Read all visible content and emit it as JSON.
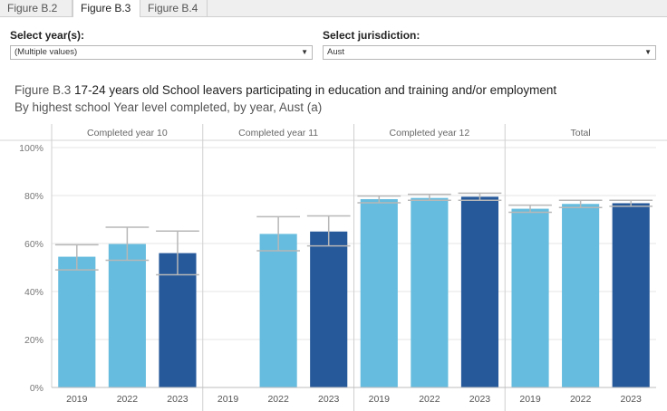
{
  "tabs": [
    "Figure B.2",
    "Figure B.3",
    "Figure B.4"
  ],
  "active_tab": 1,
  "filters": {
    "year": {
      "label": "Select year(s):",
      "value": "(Multiple values)"
    },
    "jurisdiction": {
      "label": "Select jurisdiction:",
      "value": "Aust"
    }
  },
  "figure": {
    "number": "Figure B.3",
    "title": "17-24 years old School leavers participating in education and training and/or employment",
    "subtitle": "By highest school Year level completed, by year, Aust (a)"
  },
  "colors": {
    "light": "#65bcde",
    "dark": "#26599a",
    "error_bar": "#b7b7b7",
    "grid": "#e6e6e6"
  },
  "chart_data": {
    "type": "bar",
    "panels": [
      {
        "name": "Completed year 10",
        "bars": [
          {
            "year": "2019",
            "value": 54.5,
            "low": 49.0,
            "high": 59.5,
            "color": "light"
          },
          {
            "year": "2022",
            "value": 59.8,
            "low": 53.0,
            "high": 66.8,
            "color": "light"
          },
          {
            "year": "2023",
            "value": 56.0,
            "low": 47.0,
            "high": 65.2,
            "color": "dark"
          }
        ]
      },
      {
        "name": "Completed year 11",
        "bars": [
          {
            "year": "2019",
            "value": null,
            "low": null,
            "high": null,
            "color": "light"
          },
          {
            "year": "2022",
            "value": 64.0,
            "low": 57.0,
            "high": 71.2,
            "color": "light"
          },
          {
            "year": "2023",
            "value": 65.0,
            "low": 59.0,
            "high": 71.5,
            "color": "dark"
          }
        ]
      },
      {
        "name": "Completed year 12",
        "bars": [
          {
            "year": "2019",
            "value": 78.5,
            "low": 77.0,
            "high": 79.8,
            "color": "light"
          },
          {
            "year": "2022",
            "value": 79.0,
            "low": 78.0,
            "high": 80.5,
            "color": "light"
          },
          {
            "year": "2023",
            "value": 79.5,
            "low": 78.0,
            "high": 81.0,
            "color": "dark"
          }
        ]
      },
      {
        "name": "Total",
        "bars": [
          {
            "year": "2019",
            "value": 74.5,
            "low": 73.0,
            "high": 76.0,
            "color": "light"
          },
          {
            "year": "2022",
            "value": 76.5,
            "low": 75.0,
            "high": 78.0,
            "color": "light"
          },
          {
            "year": "2023",
            "value": 76.8,
            "low": 75.5,
            "high": 78.0,
            "color": "dark"
          }
        ]
      }
    ],
    "ylim": [
      0,
      100
    ],
    "yticks": [
      0,
      20,
      40,
      60,
      80,
      100
    ],
    "ytick_labels": [
      "0%",
      "20%",
      "40%",
      "60%",
      "80%",
      "100%"
    ],
    "grid": true
  }
}
